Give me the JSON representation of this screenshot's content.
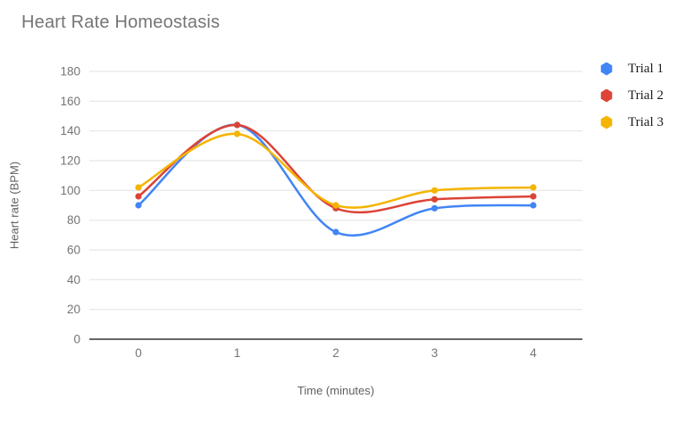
{
  "title": "Heart Rate Homeostasis",
  "chart_data": {
    "type": "line",
    "smooth": true,
    "grid": "horizontal",
    "legend_position": "right",
    "title": "Heart Rate Homeostasis",
    "xlabel": "Time (minutes)",
    "ylabel": "Heart rate (BPM)",
    "categories": [
      "0",
      "1",
      "2",
      "3",
      "4"
    ],
    "x": [
      0,
      1,
      2,
      3,
      4
    ],
    "ylim": [
      0,
      180
    ],
    "ytick_step": 20,
    "yticks": [
      0,
      20,
      40,
      60,
      80,
      100,
      120,
      140,
      160,
      180
    ],
    "series": [
      {
        "name": "Trial 1",
        "color": "#4285F4",
        "values": [
          90,
          144,
          72,
          88,
          90
        ]
      },
      {
        "name": "Trial 2",
        "color": "#DB4437",
        "values": [
          96,
          144,
          88,
          94,
          96
        ]
      },
      {
        "name": "Trial 3",
        "color": "#F4B400",
        "values": [
          102,
          138,
          90,
          100,
          102
        ]
      }
    ],
    "colors": {
      "gridline": "#e6e6e6",
      "baseline": "#333333",
      "tick_label": "#757575",
      "title_text": "#757575",
      "axis_title_text": "#616161"
    }
  }
}
